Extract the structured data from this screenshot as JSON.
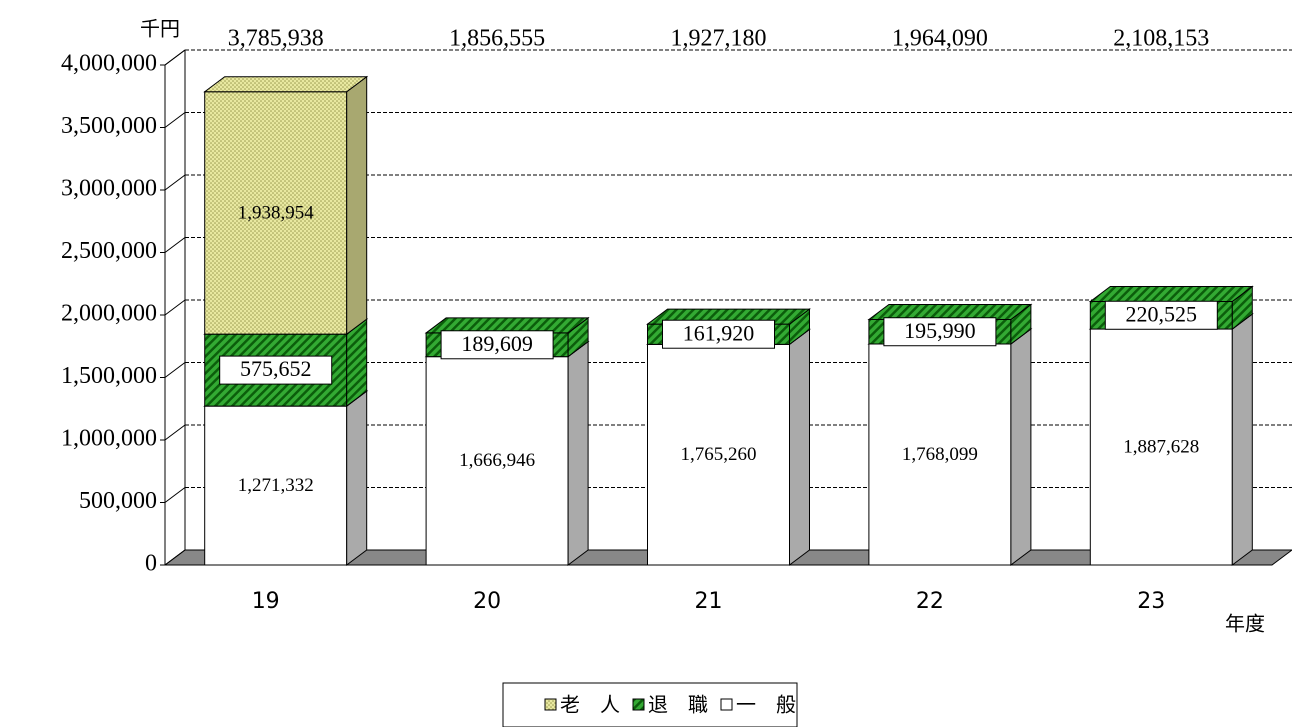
{
  "chart_data": {
    "type": "bar3d_stacked",
    "y_label": "千円",
    "x_label": "年度",
    "categories": [
      "19",
      "20",
      "21",
      "22",
      "23"
    ],
    "series": [
      {
        "name": "一　般",
        "color": "#ffffff",
        "pattern": "none",
        "values": [
          1271332,
          1666946,
          1765260,
          1768099,
          1887628
        ],
        "value_labels": [
          "1,271,332",
          "1,666,946",
          "1,765,260",
          "1,768,099",
          "1,887,628"
        ]
      },
      {
        "name": "退　職",
        "color": "#33aa33",
        "pattern": "hatch",
        "values": [
          575652,
          189609,
          161920,
          195990,
          220525
        ],
        "value_labels": [
          "575,652",
          "189,609",
          "161,920",
          "195,990",
          "220,525"
        ]
      },
      {
        "name": "老　人",
        "color": "#e8e8a0",
        "pattern": "dots",
        "values": [
          1938954,
          null,
          null,
          null,
          null
        ],
        "value_labels": [
          "1,938,954",
          null,
          null,
          null,
          null
        ]
      }
    ],
    "totals": [
      {
        "value": 3785938,
        "label": "3,785,938"
      },
      {
        "value": 1856555,
        "label": "1,856,555"
      },
      {
        "value": 1927180,
        "label": "1,927,180"
      },
      {
        "value": 1964090,
        "label": "1,964,090"
      },
      {
        "value": 2108153,
        "label": "2,108,153"
      }
    ],
    "ylim": [
      0,
      4000000
    ],
    "yticks": [
      {
        "value": 0,
        "label": "0"
      },
      {
        "value": 500000,
        "label": "500,000"
      },
      {
        "value": 1000000,
        "label": "1,000,000"
      },
      {
        "value": 1500000,
        "label": "1,500,000"
      },
      {
        "value": 2000000,
        "label": "2,000,000"
      },
      {
        "value": 2500000,
        "label": "2,500,000"
      },
      {
        "value": 3000000,
        "label": "3,000,000"
      },
      {
        "value": 3500000,
        "label": "3,500,000"
      },
      {
        "value": 4000000,
        "label": "4,000,000"
      }
    ],
    "grid": true,
    "legend": "bottom"
  }
}
